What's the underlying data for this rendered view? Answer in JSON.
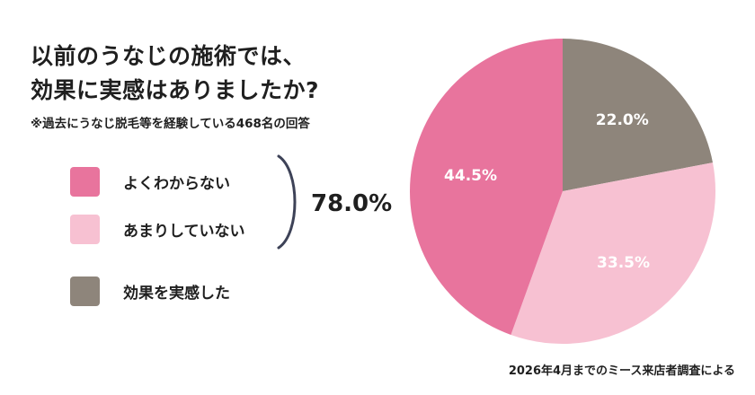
{
  "title_lines": [
    "以前のうなじの施術では、",
    "効果に実感はありましたか?"
  ],
  "subtitle": "※過去にうなじ脱毛等を経験している468名の回答",
  "group_total": "78.0%",
  "source": "2026年4月までのミース来店者調査による",
  "colors": {
    "pink": "#e8749d",
    "light_pink": "#f7c1d2",
    "taupe": "#8e857b"
  },
  "chart_data": {
    "type": "pie",
    "slices": [
      {
        "label": "効果を実感した",
        "value": 22.0,
        "display": "22.0%",
        "color": "#8e857b"
      },
      {
        "label": "あまりしていない",
        "value": 33.5,
        "display": "33.5%",
        "color": "#f7c1d2"
      },
      {
        "label": "よくわからない",
        "value": 44.5,
        "display": "44.5%",
        "color": "#e8749d"
      }
    ],
    "legend": [
      {
        "label": "よくわからない",
        "color": "#e8749d"
      },
      {
        "label": "あまりしていない",
        "color": "#f7c1d2"
      },
      {
        "label": "効果を実感した",
        "color": "#8e857b"
      }
    ],
    "start": "12 o'clock",
    "direction": "clockwise"
  }
}
